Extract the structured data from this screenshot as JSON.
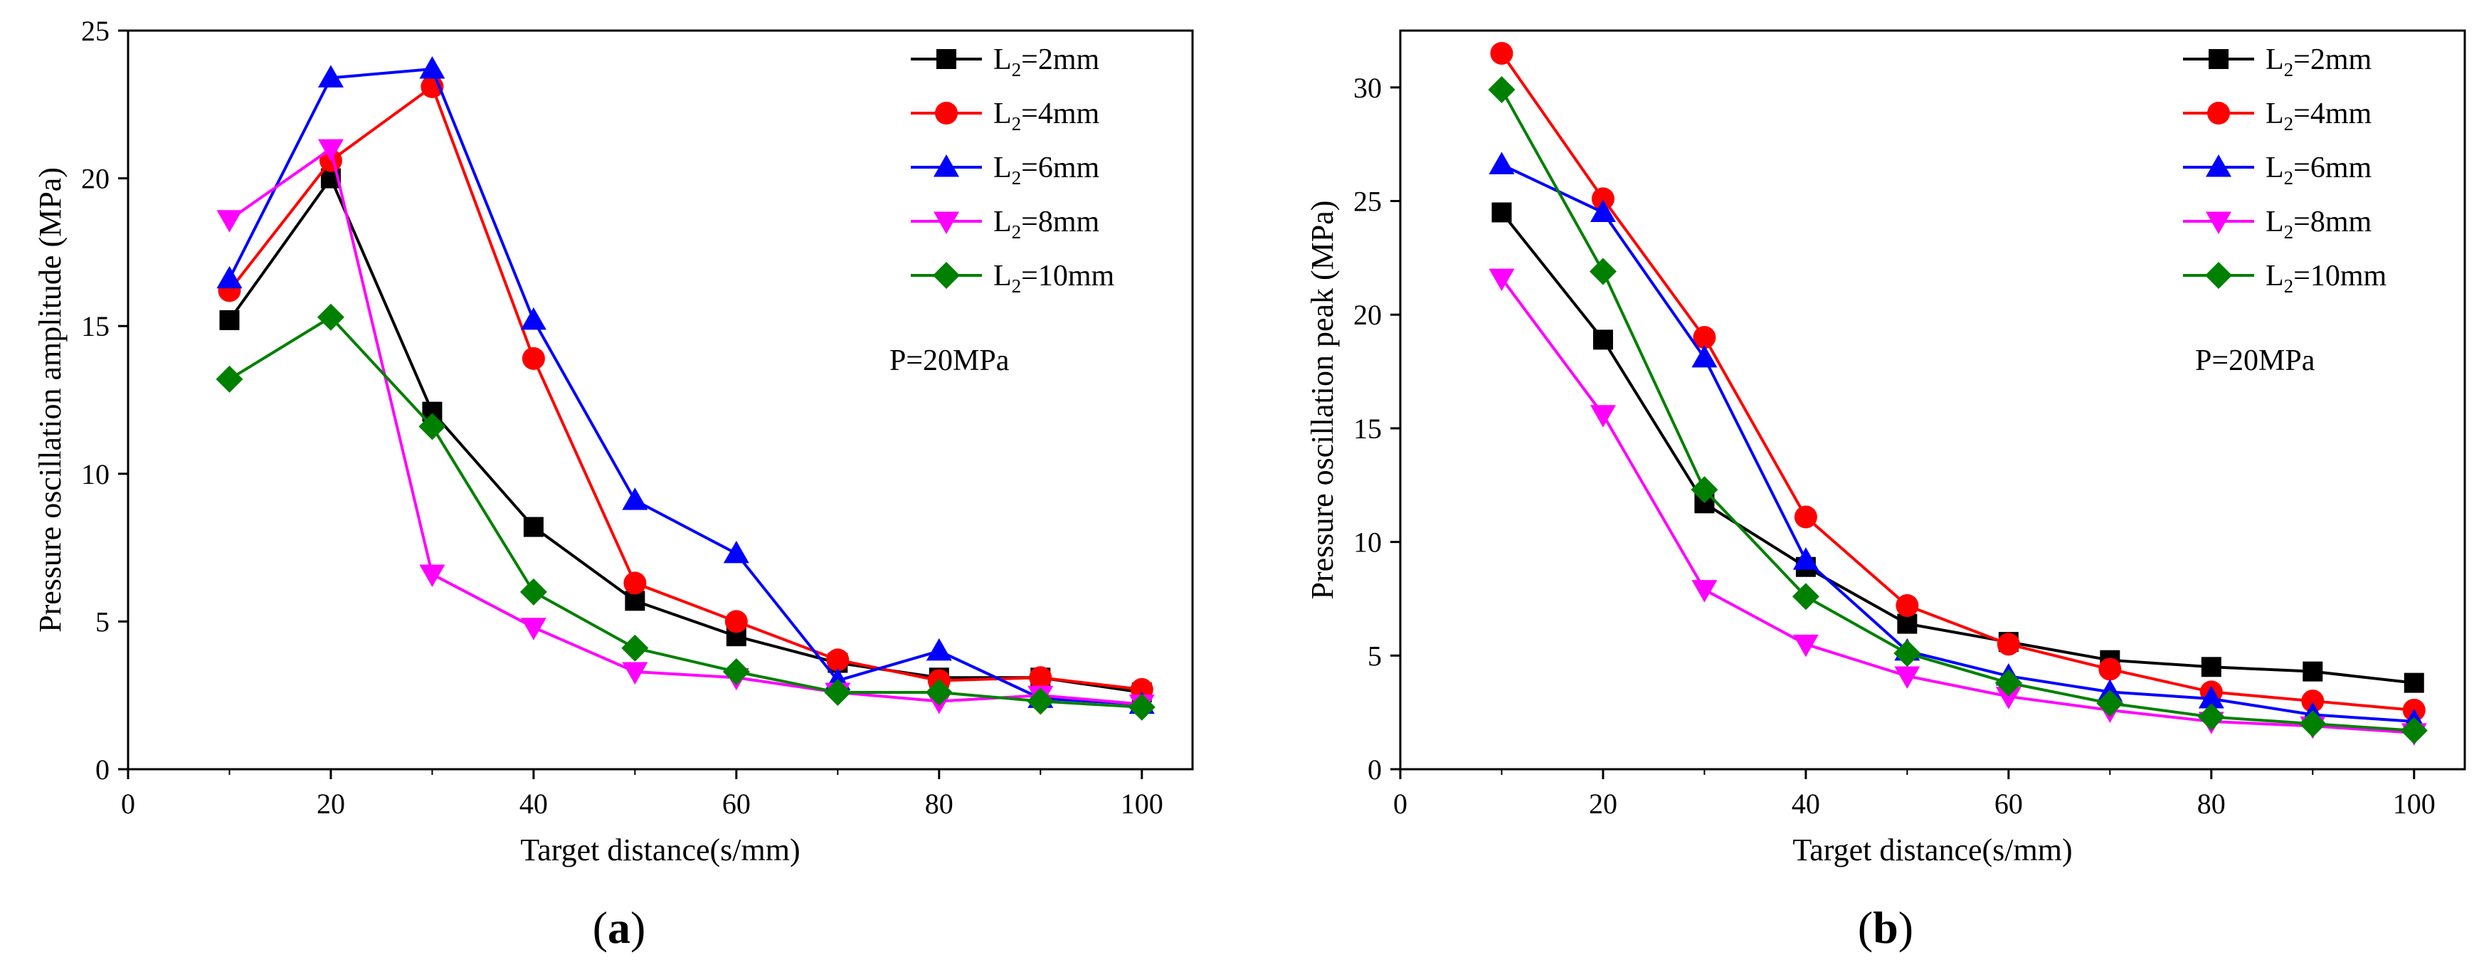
{
  "chart_data": [
    {
      "type": "line",
      "panel_label": "(a)",
      "panel_letter": "a",
      "xlabel": "Target distance(s/mm)",
      "ylabel": "Pressure  oscillation amplitude  (MPa)",
      "xlim": [
        0,
        105
      ],
      "ylim": [
        0,
        25
      ],
      "xticks": [
        0,
        20,
        40,
        60,
        80,
        100
      ],
      "yticks": [
        0,
        5,
        10,
        15,
        20,
        25
      ],
      "annotation": "P=20MPa",
      "x": [
        10,
        20,
        30,
        40,
        50,
        60,
        70,
        80,
        90,
        100
      ],
      "series": [
        {
          "name": "L2=2mm",
          "label_main": "L",
          "label_sub": "2",
          "label_rest": "=2mm",
          "color": "#000000",
          "marker": "square",
          "values": [
            15.2,
            20.0,
            12.1,
            8.2,
            5.7,
            4.5,
            3.6,
            3.1,
            3.1,
            2.6
          ]
        },
        {
          "name": "L2=4mm",
          "label_main": "L",
          "label_sub": "2",
          "label_rest": "=4mm",
          "color": "#ff0000",
          "marker": "circle",
          "values": [
            16.2,
            20.6,
            23.1,
            13.9,
            6.3,
            5.0,
            3.7,
            3.0,
            3.1,
            2.7
          ]
        },
        {
          "name": "L2=6mm",
          "label_main": "L",
          "label_sub": "2",
          "label_rest": "=6mm",
          "color": "#0000ff",
          "marker": "triangle-up",
          "values": [
            16.6,
            23.4,
            23.7,
            15.2,
            9.1,
            7.3,
            3.0,
            4.0,
            2.4,
            2.2
          ]
        },
        {
          "name": "L2=8mm",
          "label_main": "L",
          "label_sub": "2",
          "label_rest": "=8mm",
          "color": "#ff00ff",
          "marker": "triangle-down",
          "values": [
            18.6,
            21.0,
            6.6,
            4.8,
            3.3,
            3.1,
            2.6,
            2.3,
            2.5,
            2.2
          ]
        },
        {
          "name": "L2=10mm",
          "label_main": "L",
          "label_sub": "2",
          "label_rest": "=10mm",
          "color": "#008000",
          "marker": "diamond",
          "values": [
            13.2,
            15.3,
            11.6,
            6.0,
            4.1,
            3.3,
            2.6,
            2.6,
            2.3,
            2.1
          ]
        }
      ]
    },
    {
      "type": "line",
      "panel_label": "(b)",
      "panel_letter": "b",
      "xlabel": "Target distance(s/mm)",
      "ylabel": "Pressure  oscillation peak  (MPa)",
      "xlim": [
        0,
        105
      ],
      "ylim": [
        0,
        32.5
      ],
      "xticks": [
        0,
        20,
        40,
        60,
        80,
        100
      ],
      "yticks": [
        0,
        5,
        10,
        15,
        20,
        25,
        30
      ],
      "annotation": "P=20MPa",
      "x": [
        10,
        20,
        30,
        40,
        50,
        60,
        70,
        80,
        90,
        100
      ],
      "series": [
        {
          "name": "L2=2mm",
          "label_main": "L",
          "label_sub": "2",
          "label_rest": "=2mm",
          "color": "#000000",
          "marker": "square",
          "values": [
            24.5,
            18.9,
            11.7,
            8.9,
            6.4,
            5.6,
            4.8,
            4.5,
            4.3,
            3.8
          ]
        },
        {
          "name": "L2=4mm",
          "label_main": "L",
          "label_sub": "2",
          "label_rest": "=4mm",
          "color": "#ff0000",
          "marker": "circle",
          "values": [
            31.5,
            25.1,
            19.0,
            11.1,
            7.2,
            5.5,
            4.4,
            3.4,
            3.0,
            2.6
          ]
        },
        {
          "name": "L2=6mm",
          "label_main": "L",
          "label_sub": "2",
          "label_rest": "=6mm",
          "color": "#0000ff",
          "marker": "triangle-up",
          "values": [
            26.6,
            24.5,
            18.1,
            9.2,
            5.2,
            4.1,
            3.4,
            3.1,
            2.4,
            2.1
          ]
        },
        {
          "name": "L2=8mm",
          "label_main": "L",
          "label_sub": "2",
          "label_rest": "=8mm",
          "color": "#ff00ff",
          "marker": "triangle-down",
          "values": [
            21.6,
            15.6,
            7.9,
            5.5,
            4.1,
            3.2,
            2.6,
            2.1,
            1.9,
            1.6
          ]
        },
        {
          "name": "L2=10mm",
          "label_main": "L",
          "label_sub": "2",
          "label_rest": "=10mm",
          "color": "#008000",
          "marker": "diamond",
          "values": [
            29.9,
            21.9,
            12.3,
            7.6,
            5.1,
            3.8,
            2.9,
            2.3,
            2.0,
            1.7
          ]
        }
      ]
    }
  ]
}
